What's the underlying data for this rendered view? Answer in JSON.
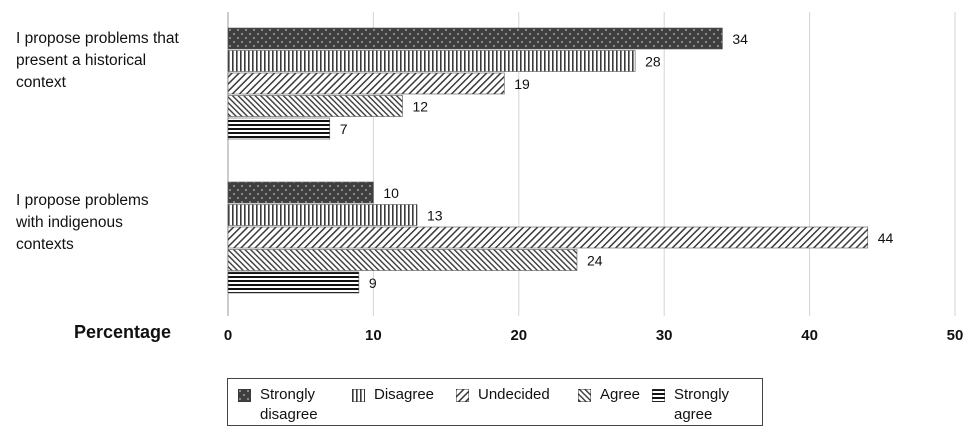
{
  "chart_data": {
    "type": "bar",
    "orientation": "horizontal",
    "categories": [
      "I propose problems that present a historical context",
      "I propose problems with indigenous contexts"
    ],
    "series": [
      {
        "name": "Strongly disagree",
        "values": [
          34,
          10
        ],
        "pattern": "dots"
      },
      {
        "name": "Disagree",
        "values": [
          28,
          13
        ],
        "pattern": "vertical-lines"
      },
      {
        "name": "Undecided",
        "values": [
          19,
          44
        ],
        "pattern": "diagonal-lines"
      },
      {
        "name": "Agree",
        "values": [
          12,
          24
        ],
        "pattern": "back-diagonal-lines"
      },
      {
        "name": "Strongly agree",
        "values": [
          7,
          9
        ],
        "pattern": "horizontal-lines"
      }
    ],
    "xlabel": "Percentage",
    "xlim": [
      0,
      50
    ],
    "xticks": [
      0,
      10,
      20,
      30,
      40,
      50
    ],
    "grid": "vertical",
    "legend_position": "bottom"
  },
  "labels": {
    "category_0": "I propose problems that\npresent a historical\ncontext",
    "category_1": "I propose problems\nwith indigenous\ncontexts",
    "axis_title": "Percentage",
    "legend": [
      "Strongly\ndisagree",
      "Disagree",
      "Undecided",
      "Agree",
      "Strongly\nagree"
    ]
  }
}
